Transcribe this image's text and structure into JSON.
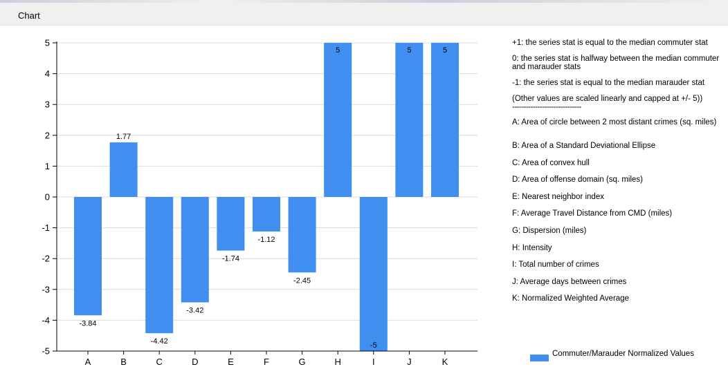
{
  "window": {
    "title": "Chart"
  },
  "chart_data": {
    "type": "bar",
    "categories": [
      "A",
      "B",
      "C",
      "D",
      "E",
      "F",
      "G",
      "H",
      "I",
      "J",
      "K"
    ],
    "series": [
      {
        "name": "Commuter/Marauder Normalized Values",
        "values": [
          -3.84,
          1.77,
          -4.42,
          -3.42,
          -1.74,
          -1.12,
          -2.45,
          5,
          -5,
          5,
          5
        ],
        "color": "#3f8ef0"
      }
    ],
    "data_labels": [
      "-3.84",
      "1.77",
      "-4.42",
      "-3.42",
      "-1.74",
      "-1.12",
      "-2.45",
      "5",
      "-5",
      "5",
      "5"
    ],
    "ylim": [
      -5,
      5
    ],
    "yticks": [
      5,
      4,
      3,
      2,
      1,
      0,
      -1,
      -2,
      -3,
      -4,
      -5
    ],
    "grid": true,
    "grid_color": "#dcdcdc",
    "legend_position": "right"
  },
  "legend_notes": [
    "+1: the series stat is equal to the median commuter stat",
    "0: the series stat is halfway between the median commuter and marauder stats",
    "-1: the series stat is equal to the median marauder stat",
    "(Other values are scaled linearly and capped at +/- 5))"
  ],
  "legend_divider": "------------------------------",
  "legend_items": [
    "A:  Area of circle between 2 most distant crimes (sq. miles)",
    "B:  Area of a Standard Deviational Ellipse",
    "C:  Area of convex hull",
    "D:  Area of offense domain (sq. miles)",
    "E:  Nearest neighbor index",
    "F:  Average Travel Distance from CMD (miles)",
    "G:  Dispersion (miles)",
    "H:  Intensity",
    "I:  Total number of crimes",
    "J:  Average days between crimes",
    "K:  Normalized Weighted Average"
  ]
}
